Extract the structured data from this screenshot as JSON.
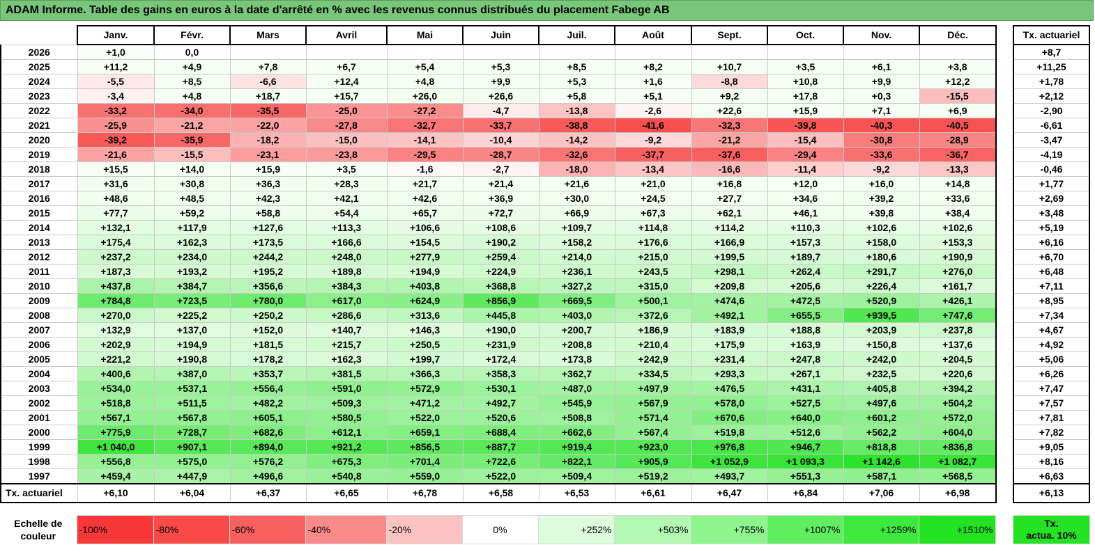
{
  "title": "ADAM Informe. Table des gains en euros à la date d'arrêté en % avec les revenus connus distribués du placement Fabege AB",
  "months": [
    "Janv.",
    "Févr.",
    "Mars",
    "Avril",
    "Mai",
    "Juin",
    "Juil.",
    "Août",
    "Sept.",
    "Oct.",
    "Nov.",
    "Déc."
  ],
  "tx_header": "Tx. actuariel",
  "footer_label": "Tx. actuariel",
  "rows": [
    {
      "year": "2026",
      "cells": [
        "+1,0",
        "0,0",
        "",
        "",
        "",
        "",
        "",
        "",
        "",
        "",
        "",
        ""
      ],
      "tx": "+8,7"
    },
    {
      "year": "2025",
      "cells": [
        "+11,2",
        "+4,9",
        "+7,8",
        "+6,7",
        "+5,4",
        "+5,3",
        "+8,5",
        "+8,2",
        "+10,7",
        "+3,5",
        "+6,1",
        "+3,8"
      ],
      "tx": "+11,25"
    },
    {
      "year": "2024",
      "cells": [
        "-5,5",
        "+8,5",
        "-6,6",
        "+12,4",
        "+4,8",
        "+9,9",
        "+5,3",
        "+1,6",
        "-8,8",
        "+10,8",
        "+9,9",
        "+12,2"
      ],
      "tx": "+1,78"
    },
    {
      "year": "2023",
      "cells": [
        "-3,4",
        "+4,8",
        "+18,7",
        "+15,7",
        "+26,0",
        "+26,6",
        "+5,8",
        "+5,1",
        "+9,2",
        "+17,8",
        "+0,3",
        "-15,5"
      ],
      "tx": "+2,12"
    },
    {
      "year": "2022",
      "cells": [
        "-33,2",
        "-34,0",
        "-35,5",
        "-25,0",
        "-27,2",
        "-4,7",
        "-13,8",
        "-2,6",
        "+22,6",
        "+15,9",
        "+7,1",
        "+6,9"
      ],
      "tx": "-2,90"
    },
    {
      "year": "2021",
      "cells": [
        "-25,9",
        "-21,2",
        "-22,0",
        "-27,8",
        "-32,7",
        "-33,7",
        "-38,8",
        "-41,6",
        "-32,3",
        "-39,8",
        "-40,3",
        "-40,5"
      ],
      "tx": "-6,61"
    },
    {
      "year": "2020",
      "cells": [
        "-39,2",
        "-35,9",
        "-18,2",
        "-15,0",
        "-14,1",
        "-10,4",
        "-14,2",
        "-9,2",
        "-21,2",
        "-15,4",
        "-30,8",
        "-28,9"
      ],
      "tx": "-3,47"
    },
    {
      "year": "2019",
      "cells": [
        "-21,6",
        "-15,5",
        "-23,1",
        "-23,8",
        "-29,5",
        "-28,7",
        "-32,6",
        "-37,7",
        "-37,6",
        "-29,4",
        "-33,6",
        "-36,7"
      ],
      "tx": "-4,19"
    },
    {
      "year": "2018",
      "cells": [
        "+15,5",
        "+14,0",
        "+15,9",
        "+3,5",
        "-1,6",
        "-2,7",
        "-18,0",
        "-13,4",
        "-16,6",
        "-11,4",
        "-9,2",
        "-13,3"
      ],
      "tx": "-0,46"
    },
    {
      "year": "2017",
      "cells": [
        "+31,6",
        "+30,8",
        "+36,3",
        "+28,3",
        "+21,7",
        "+21,4",
        "+21,6",
        "+21,0",
        "+16,8",
        "+12,0",
        "+16,0",
        "+14,8"
      ],
      "tx": "+1,77"
    },
    {
      "year": "2016",
      "cells": [
        "+48,6",
        "+48,5",
        "+42,3",
        "+42,1",
        "+42,6",
        "+36,9",
        "+30,0",
        "+24,5",
        "+27,7",
        "+34,6",
        "+39,2",
        "+33,6"
      ],
      "tx": "+2,69"
    },
    {
      "year": "2015",
      "cells": [
        "+77,7",
        "+59,2",
        "+58,8",
        "+54,4",
        "+65,7",
        "+72,7",
        "+66,9",
        "+67,3",
        "+62,1",
        "+46,1",
        "+39,8",
        "+38,4"
      ],
      "tx": "+3,48"
    },
    {
      "year": "2014",
      "cells": [
        "+132,1",
        "+117,9",
        "+127,6",
        "+113,3",
        "+106,6",
        "+108,6",
        "+109,7",
        "+114,8",
        "+114,2",
        "+110,3",
        "+102,6",
        "+102,6"
      ],
      "tx": "+5,19"
    },
    {
      "year": "2013",
      "cells": [
        "+175,4",
        "+162,3",
        "+173,5",
        "+166,6",
        "+154,5",
        "+190,2",
        "+158,2",
        "+176,6",
        "+166,9",
        "+157,3",
        "+158,0",
        "+153,3"
      ],
      "tx": "+6,16"
    },
    {
      "year": "2012",
      "cells": [
        "+237,2",
        "+234,0",
        "+244,2",
        "+248,0",
        "+277,9",
        "+259,4",
        "+214,0",
        "+215,0",
        "+199,5",
        "+189,7",
        "+180,6",
        "+190,9"
      ],
      "tx": "+6,70"
    },
    {
      "year": "2011",
      "cells": [
        "+187,3",
        "+193,2",
        "+195,2",
        "+189,8",
        "+194,9",
        "+224,9",
        "+236,1",
        "+243,5",
        "+298,1",
        "+262,4",
        "+291,7",
        "+276,0"
      ],
      "tx": "+6,48"
    },
    {
      "year": "2010",
      "cells": [
        "+437,8",
        "+384,7",
        "+356,6",
        "+384,3",
        "+403,8",
        "+368,8",
        "+327,2",
        "+315,0",
        "+209,8",
        "+205,6",
        "+226,4",
        "+161,7"
      ],
      "tx": "+7,11"
    },
    {
      "year": "2009",
      "cells": [
        "+784,8",
        "+723,5",
        "+780,0",
        "+617,0",
        "+624,9",
        "+856,9",
        "+669,5",
        "+500,1",
        "+474,6",
        "+472,5",
        "+520,9",
        "+426,1"
      ],
      "tx": "+8,95"
    },
    {
      "year": "2008",
      "cells": [
        "+270,0",
        "+225,2",
        "+250,2",
        "+286,6",
        "+313,6",
        "+445,8",
        "+403,0",
        "+372,6",
        "+492,1",
        "+655,5",
        "+939,5",
        "+747,6"
      ],
      "tx": "+7,34"
    },
    {
      "year": "2007",
      "cells": [
        "+132,9",
        "+137,0",
        "+152,0",
        "+140,7",
        "+146,3",
        "+190,0",
        "+200,7",
        "+186,9",
        "+183,9",
        "+188,8",
        "+203,9",
        "+237,8"
      ],
      "tx": "+4,67"
    },
    {
      "year": "2006",
      "cells": [
        "+202,9",
        "+194,9",
        "+181,5",
        "+215,7",
        "+250,5",
        "+231,9",
        "+208,8",
        "+210,4",
        "+175,9",
        "+163,9",
        "+150,8",
        "+137,6"
      ],
      "tx": "+4,92"
    },
    {
      "year": "2005",
      "cells": [
        "+221,2",
        "+190,8",
        "+178,2",
        "+162,3",
        "+199,7",
        "+172,4",
        "+173,8",
        "+242,9",
        "+231,4",
        "+247,8",
        "+242,0",
        "+204,5"
      ],
      "tx": "+5,06"
    },
    {
      "year": "2004",
      "cells": [
        "+400,6",
        "+387,0",
        "+353,7",
        "+381,5",
        "+366,3",
        "+358,3",
        "+362,7",
        "+334,5",
        "+293,3",
        "+267,1",
        "+232,5",
        "+220,6"
      ],
      "tx": "+6,26"
    },
    {
      "year": "2003",
      "cells": [
        "+534,0",
        "+537,1",
        "+556,4",
        "+591,0",
        "+572,9",
        "+530,1",
        "+487,0",
        "+497,9",
        "+476,5",
        "+431,1",
        "+405,8",
        "+394,2"
      ],
      "tx": "+7,47"
    },
    {
      "year": "2002",
      "cells": [
        "+518,8",
        "+511,5",
        "+482,2",
        "+509,3",
        "+471,2",
        "+492,7",
        "+545,9",
        "+567,9",
        "+578,0",
        "+527,5",
        "+497,6",
        "+504,2"
      ],
      "tx": "+7,57"
    },
    {
      "year": "2001",
      "cells": [
        "+567,1",
        "+567,8",
        "+605,1",
        "+580,5",
        "+522,0",
        "+520,6",
        "+508,8",
        "+571,4",
        "+670,6",
        "+640,0",
        "+601,2",
        "+572,0"
      ],
      "tx": "+7,81"
    },
    {
      "year": "2000",
      "cells": [
        "+775,9",
        "+728,7",
        "+682,6",
        "+612,1",
        "+659,1",
        "+688,4",
        "+662,6",
        "+567,4",
        "+519,8",
        "+512,6",
        "+562,2",
        "+604,0"
      ],
      "tx": "+7,82"
    },
    {
      "year": "1999",
      "cells": [
        "+1 040,0",
        "+907,1",
        "+894,0",
        "+921,2",
        "+856,5",
        "+887,7",
        "+919,4",
        "+923,0",
        "+976,8",
        "+946,7",
        "+818,8",
        "+836,8"
      ],
      "tx": "+9,05"
    },
    {
      "year": "1998",
      "cells": [
        "+556,8",
        "+575,0",
        "+576,2",
        "+675,3",
        "+701,4",
        "+722,6",
        "+822,1",
        "+905,9",
        "+1 052,9",
        "+1 093,3",
        "+1 142,6",
        "+1 082,7"
      ],
      "tx": "+8,16"
    },
    {
      "year": "1997",
      "cells": [
        "+459,4",
        "+447,9",
        "+496,6",
        "+540,8",
        "+559,0",
        "+522,0",
        "+509,4",
        "+519,2",
        "+493,7",
        "+551,3",
        "+587,1",
        "+568,5"
      ],
      "tx": "+6,63"
    }
  ],
  "footer": {
    "cells": [
      "+6,10",
      "+6,04",
      "+6,37",
      "+6,65",
      "+6,78",
      "+6,58",
      "+6,53",
      "+6,61",
      "+6,47",
      "+6,84",
      "+7,06",
      "+6,98"
    ],
    "tx": "+6,13"
  },
  "scale": {
    "label_line1": "Echelle de",
    "label_line2": "couleur",
    "items": [
      {
        "label": "-100%",
        "color": "#f83838",
        "kind": "neg"
      },
      {
        "label": "-80%",
        "color": "#f94a4a",
        "kind": "neg"
      },
      {
        "label": "-60%",
        "color": "#fa5f5f",
        "kind": "neg"
      },
      {
        "label": "-40%",
        "color": "#fb8a8a",
        "kind": "neg"
      },
      {
        "label": "-20%",
        "color": "#fdc2c2",
        "kind": "neg"
      },
      {
        "label": "0%",
        "color": "#ffffff",
        "kind": "zero"
      },
      {
        "label": "+252%",
        "color": "#dcfcdc",
        "kind": "pos"
      },
      {
        "label": "+503%",
        "color": "#b3f8b3",
        "kind": "pos"
      },
      {
        "label": "+755%",
        "color": "#8ef48e",
        "kind": "pos"
      },
      {
        "label": "+1007%",
        "color": "#5fee5f",
        "kind": "pos"
      },
      {
        "label": "+1259%",
        "color": "#3ee93e",
        "kind": "pos"
      },
      {
        "label": "+1510%",
        "color": "#22e222",
        "kind": "pos"
      }
    ],
    "tx_label_line1": "Tx.",
    "tx_label_line2": "actua. 10%"
  }
}
